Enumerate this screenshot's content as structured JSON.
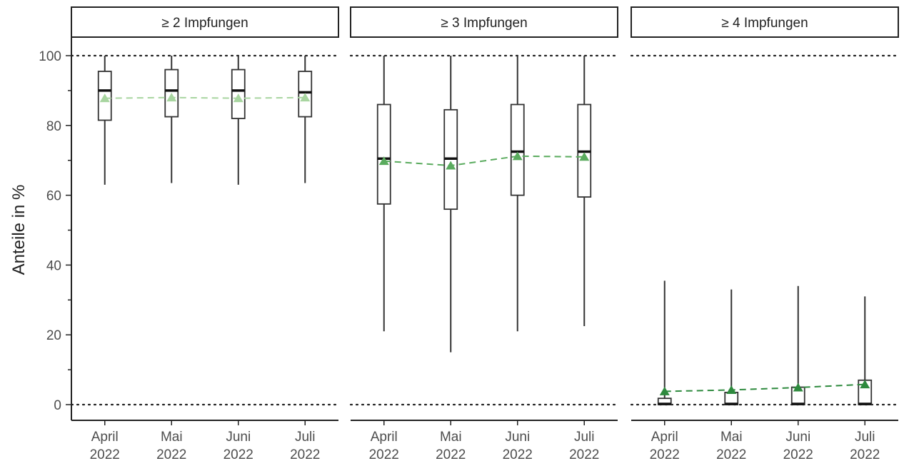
{
  "chart_data": {
    "type": "boxplot",
    "ylabel": "Anteile in %",
    "ylim": [
      0,
      100
    ],
    "yticks": [
      0,
      20,
      40,
      60,
      80,
      100
    ],
    "reference_lines": [
      0,
      100
    ],
    "categories": [
      {
        "line1": "April",
        "line2": "2022"
      },
      {
        "line1": "Mai",
        "line2": "2022"
      },
      {
        "line1": "Juni",
        "line2": "2022"
      },
      {
        "line1": "Juli",
        "line2": "2022"
      }
    ],
    "panels": [
      {
        "title": "≥ 2 Impfungen",
        "mean_color": "#a8d5a0",
        "boxes": [
          {
            "min": 63,
            "q1": 81.5,
            "median": 90,
            "q3": 95.5,
            "max": 100,
            "mean": 87.8
          },
          {
            "min": 63.5,
            "q1": 82.5,
            "median": 90,
            "q3": 96,
            "max": 100,
            "mean": 88
          },
          {
            "min": 63,
            "q1": 82,
            "median": 90,
            "q3": 96,
            "max": 100,
            "mean": 87.8
          },
          {
            "min": 63.5,
            "q1": 82.5,
            "median": 89.5,
            "q3": 95.5,
            "max": 100,
            "mean": 88
          }
        ]
      },
      {
        "title": "≥ 3 Impfungen",
        "mean_color": "#5aab5e",
        "boxes": [
          {
            "min": 21,
            "q1": 57.5,
            "median": 70.5,
            "q3": 86,
            "max": 100,
            "mean": 69.8
          },
          {
            "min": 15,
            "q1": 56,
            "median": 70.5,
            "q3": 84.5,
            "max": 100,
            "mean": 68.5
          },
          {
            "min": 21,
            "q1": 60,
            "median": 72.5,
            "q3": 86,
            "max": 100,
            "mean": 71.2
          },
          {
            "min": 22.5,
            "q1": 59.5,
            "median": 72.5,
            "q3": 86,
            "max": 100,
            "mean": 71
          }
        ]
      },
      {
        "title": "≥ 4 Impfungen",
        "mean_color": "#2e8a3e",
        "boxes": [
          {
            "min": 0,
            "q1": 0,
            "median": 0.2,
            "q3": 1.8,
            "max": 35.5,
            "mean": 3.8
          },
          {
            "min": 0,
            "q1": 0,
            "median": 0.2,
            "q3": 3.5,
            "max": 33,
            "mean": 4.2
          },
          {
            "min": 0,
            "q1": 0,
            "median": 0.2,
            "q3": 5,
            "max": 34,
            "mean": 4.9
          },
          {
            "min": 0,
            "q1": 0,
            "median": 0.2,
            "q3": 7,
            "max": 31,
            "mean": 5.8
          }
        ]
      }
    ]
  }
}
